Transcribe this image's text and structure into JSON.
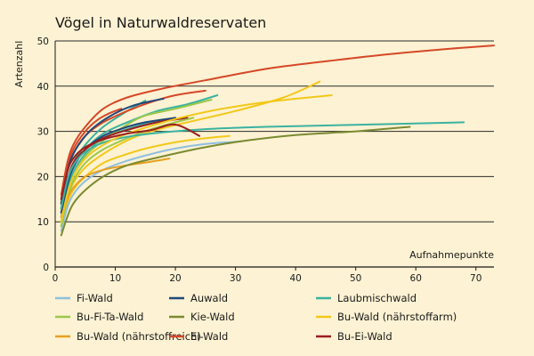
{
  "chart_data": {
    "type": "line",
    "title": "Vögel in Naturwaldreservaten",
    "xlabel": "Aufnahmepunkte",
    "ylabel": "Artenzahl",
    "xlim": [
      0,
      73
    ],
    "ylim": [
      0,
      50
    ],
    "xticks": [
      0,
      10,
      20,
      30,
      40,
      50,
      60,
      70
    ],
    "yticks": [
      0,
      10,
      20,
      30,
      40,
      50
    ],
    "grid": "horizontal",
    "legend_position": "bottom",
    "series": [
      {
        "name": "Fi-Wald",
        "color": "#8fbfe0",
        "points": [
          [
            1,
            8
          ],
          [
            2,
            13
          ],
          [
            3,
            16
          ],
          [
            5,
            19
          ],
          [
            8,
            21.5
          ],
          [
            12,
            23.5
          ],
          [
            16,
            25
          ],
          [
            20,
            26.2
          ],
          [
            25,
            27.2
          ],
          [
            31,
            27.8
          ]
        ]
      },
      {
        "name": "Bu-Fi-Ta-Wald",
        "color": "#9cc74a",
        "points": [
          [
            1,
            9
          ],
          [
            2,
            15
          ],
          [
            3,
            19
          ],
          [
            5,
            23
          ],
          [
            8,
            26
          ],
          [
            12,
            28.5
          ],
          [
            16,
            30.5
          ],
          [
            20,
            32
          ],
          [
            23,
            33
          ]
        ]
      },
      {
        "name": "Bu-Wald (nährstoffreich)",
        "color": "#e8a020",
        "points": [
          [
            1,
            11
          ],
          [
            2,
            15
          ],
          [
            3,
            17.5
          ],
          [
            5,
            20
          ],
          [
            8,
            21.5
          ],
          [
            12,
            22.5
          ],
          [
            16,
            23.3
          ],
          [
            19,
            24
          ]
        ]
      },
      {
        "name": "Auwald",
        "color": "#20487a",
        "points": [
          [
            1,
            14
          ],
          [
            2,
            21
          ],
          [
            3,
            25
          ],
          [
            5,
            29
          ],
          [
            7,
            31.5
          ],
          [
            10,
            34
          ],
          [
            13,
            35.7
          ],
          [
            16,
            36.7
          ],
          [
            18,
            37.2
          ]
        ]
      },
      {
        "name": "Kie-Wald",
        "color": "#7a8a30",
        "points": [
          [
            1,
            7
          ],
          [
            2,
            11
          ],
          [
            3,
            14
          ],
          [
            5,
            17
          ],
          [
            8,
            20
          ],
          [
            12,
            22.5
          ],
          [
            18,
            24.5
          ],
          [
            25,
            26.5
          ],
          [
            32,
            28
          ],
          [
            40,
            29.2
          ],
          [
            50,
            30
          ],
          [
            59,
            31
          ]
        ]
      },
      {
        "name": "Ei-Wald",
        "color": "#d54828",
        "points": [
          [
            1,
            16
          ],
          [
            2,
            23
          ],
          [
            3,
            27
          ],
          [
            5,
            31
          ],
          [
            8,
            35
          ],
          [
            12,
            37.5
          ],
          [
            18,
            39.5
          ],
          [
            25,
            41.3
          ],
          [
            35,
            43.8
          ],
          [
            45,
            45.5
          ],
          [
            55,
            47
          ],
          [
            65,
            48.2
          ],
          [
            73,
            49
          ]
        ]
      },
      {
        "name": "Laubmischwald",
        "color": "#3bb2a0",
        "points": [
          [
            1,
            13
          ],
          [
            2,
            19
          ],
          [
            3,
            22.5
          ],
          [
            5,
            25.5
          ],
          [
            8,
            27.5
          ],
          [
            12,
            28.8
          ],
          [
            18,
            29.8
          ],
          [
            25,
            30.5
          ],
          [
            35,
            31
          ],
          [
            45,
            31.3
          ],
          [
            55,
            31.6
          ],
          [
            68,
            32
          ]
        ]
      },
      {
        "name": "Bu-Wald (nährstoffarm)",
        "color": "#f2c81a",
        "points": [
          [
            1,
            10
          ],
          [
            2,
            16
          ],
          [
            3,
            20
          ],
          [
            5,
            24
          ],
          [
            8,
            27
          ],
          [
            12,
            29.5
          ],
          [
            18,
            32
          ],
          [
            24,
            34
          ],
          [
            30,
            35.5
          ],
          [
            37,
            36.8
          ],
          [
            46,
            38
          ]
        ]
      },
      {
        "name": "Bu-Ei-Wald",
        "color": "#9a1f1f",
        "points": [
          [
            1,
            15
          ],
          [
            2,
            21
          ],
          [
            3,
            24
          ],
          [
            5,
            26.5
          ],
          [
            8,
            28.2
          ],
          [
            12,
            29.5
          ],
          [
            16,
            30.3
          ],
          [
            20,
            31.5
          ],
          [
            24,
            29
          ]
        ]
      }
    ],
    "extra_curves": [
      {
        "color": "#3bb2a0",
        "points": [
          [
            1,
            12
          ],
          [
            2,
            18
          ],
          [
            3,
            22
          ],
          [
            5,
            26
          ],
          [
            8,
            29.5
          ],
          [
            12,
            32
          ],
          [
            17,
            34.5
          ],
          [
            22,
            36
          ],
          [
            27,
            38
          ]
        ]
      },
      {
        "color": "#3bb2a0",
        "points": [
          [
            1,
            11
          ],
          [
            2,
            17
          ],
          [
            3,
            21
          ],
          [
            5,
            25
          ],
          [
            8,
            28.5
          ],
          [
            12,
            30.5
          ],
          [
            16,
            32
          ],
          [
            20,
            33
          ]
        ]
      },
      {
        "color": "#9cc74a",
        "points": [
          [
            1,
            10
          ],
          [
            2,
            16
          ],
          [
            3,
            20
          ],
          [
            5,
            24.5
          ],
          [
            8,
            28
          ],
          [
            12,
            31.5
          ],
          [
            15,
            33.5
          ],
          [
            20,
            35
          ],
          [
            26,
            37
          ]
        ]
      },
      {
        "color": "#3bb2a0",
        "points": [
          [
            1,
            13
          ],
          [
            2,
            19
          ],
          [
            3,
            23
          ],
          [
            5,
            27
          ],
          [
            8,
            31
          ],
          [
            12,
            34.5
          ],
          [
            15,
            36.8
          ]
        ]
      },
      {
        "color": "#d54828",
        "points": [
          [
            1,
            15
          ],
          [
            2,
            22
          ],
          [
            3,
            26
          ],
          [
            5,
            30
          ],
          [
            7,
            32.5
          ],
          [
            9,
            34
          ],
          [
            11,
            35
          ]
        ]
      },
      {
        "color": "#20487a",
        "points": [
          [
            1,
            12
          ],
          [
            2,
            18
          ],
          [
            3,
            22
          ],
          [
            5,
            26
          ],
          [
            8,
            29
          ],
          [
            12,
            31
          ],
          [
            15,
            32
          ],
          [
            20,
            33
          ]
        ]
      },
      {
        "color": "#f2c81a",
        "points": [
          [
            1,
            10
          ],
          [
            2,
            15
          ],
          [
            3,
            18.5
          ],
          [
            5,
            22
          ],
          [
            8,
            25
          ],
          [
            12,
            28
          ],
          [
            16,
            30
          ],
          [
            22,
            32
          ],
          [
            30,
            34.5
          ],
          [
            38,
            37.5
          ],
          [
            44,
            41
          ]
        ]
      },
      {
        "color": "#f2c81a",
        "points": [
          [
            1,
            9
          ],
          [
            2,
            14
          ],
          [
            3,
            17
          ],
          [
            5,
            20
          ],
          [
            8,
            23
          ],
          [
            12,
            25
          ],
          [
            16,
            26.5
          ],
          [
            22,
            28
          ],
          [
            29,
            29
          ]
        ]
      },
      {
        "color": "#d54828",
        "points": [
          [
            1,
            14
          ],
          [
            2,
            21
          ],
          [
            3,
            25
          ],
          [
            5,
            29
          ],
          [
            8,
            32
          ],
          [
            12,
            34.5
          ],
          [
            16,
            36.5
          ],
          [
            20,
            38
          ],
          [
            25,
            39
          ]
        ]
      },
      {
        "color": "#9a1f1f",
        "points": [
          [
            1,
            13
          ],
          [
            2,
            19
          ],
          [
            3,
            23
          ],
          [
            5,
            26
          ],
          [
            8,
            28.5
          ],
          [
            12,
            30.3
          ],
          [
            17,
            32
          ],
          [
            22,
            33
          ]
        ]
      }
    ]
  }
}
